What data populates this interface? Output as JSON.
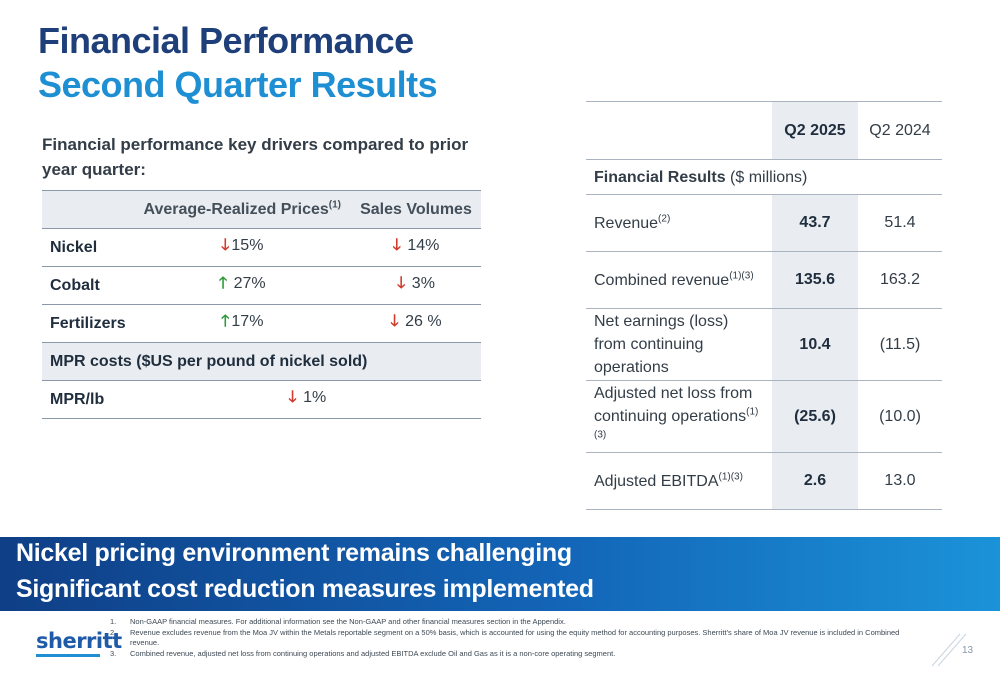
{
  "title_line1": "Financial Performance",
  "title_line2": "Second Quarter Results",
  "drivers": {
    "title": "Financial performance key drivers compared to prior year quarter:",
    "headers": [
      "",
      "Average-Realized Prices",
      "Sales Volumes"
    ],
    "header_sup": "(1)",
    "rows": [
      {
        "label": "Nickel",
        "price": "15%",
        "price_dir": "down",
        "volume": " 14%",
        "volume_dir": "down"
      },
      {
        "label": "Cobalt",
        "price": " 27%",
        "price_dir": "up",
        "volume": " 3%",
        "volume_dir": "down"
      },
      {
        "label": "Fertilizers",
        "price": "17%",
        "price_dir": "up",
        "volume": " 26 %",
        "volume_dir": "down"
      }
    ],
    "mpr_section": "MPR costs ($US per pound of nickel sold)",
    "mpr_row": {
      "label": "MPR/lb",
      "value": " 1%",
      "dir": "down"
    }
  },
  "financial": {
    "col_2025": "Q2 2025",
    "col_2024": "Q2 2024",
    "section_bold": "Financial Results",
    "section_rest": " ($ millions)",
    "rows": [
      {
        "label": "Revenue",
        "sup": "(2)",
        "q2025": "43.7",
        "q2024": "51.4"
      },
      {
        "label": "Combined revenue",
        "sup": "(1)(3)",
        "q2025": "135.6",
        "q2024": "163.2"
      },
      {
        "label": "Net earnings (loss) from continuing operations",
        "sup": "",
        "q2025": "10.4",
        "q2024": "(11.5)"
      },
      {
        "label": "Adjusted net loss from continuing operations",
        "sup": "(1)(3)",
        "q2025": "(25.6)",
        "q2024": "(10.0)"
      },
      {
        "label": "Adjusted EBITDA",
        "sup": "(1)(3)",
        "q2025": "2.6",
        "q2024": "13.0"
      }
    ]
  },
  "banner": {
    "line1": "Nickel pricing environment remains challenging",
    "line2": "Significant cost reduction measures implemented"
  },
  "logo_text": "sherritt",
  "footnotes": [
    {
      "num": "1.",
      "text": "Non-GAAP financial measures. For additional information see the Non-GAAP and other financial measures section in the Appendix."
    },
    {
      "num": "2.",
      "text": "Revenue excludes revenue from the Moa JV within the Metals reportable segment on a 50% basis, which is accounted for using the equity method for accounting purposes.  Sherritt's share of Moa JV revenue is included in Combined revenue."
    },
    {
      "num": "3.",
      "text": "Combined revenue, adjusted net loss from continuing operations and adjusted EBITDA exclude Oil and Gas as it is a non-core operating segment."
    }
  ],
  "page_number": "13",
  "arrows": {
    "up": "🡑",
    "down": "🡓"
  },
  "colors": {
    "title_dark": "#1e3f7a",
    "title_light": "#1e8fd3",
    "up": "#2e9a3a",
    "down": "#d13b2c"
  }
}
